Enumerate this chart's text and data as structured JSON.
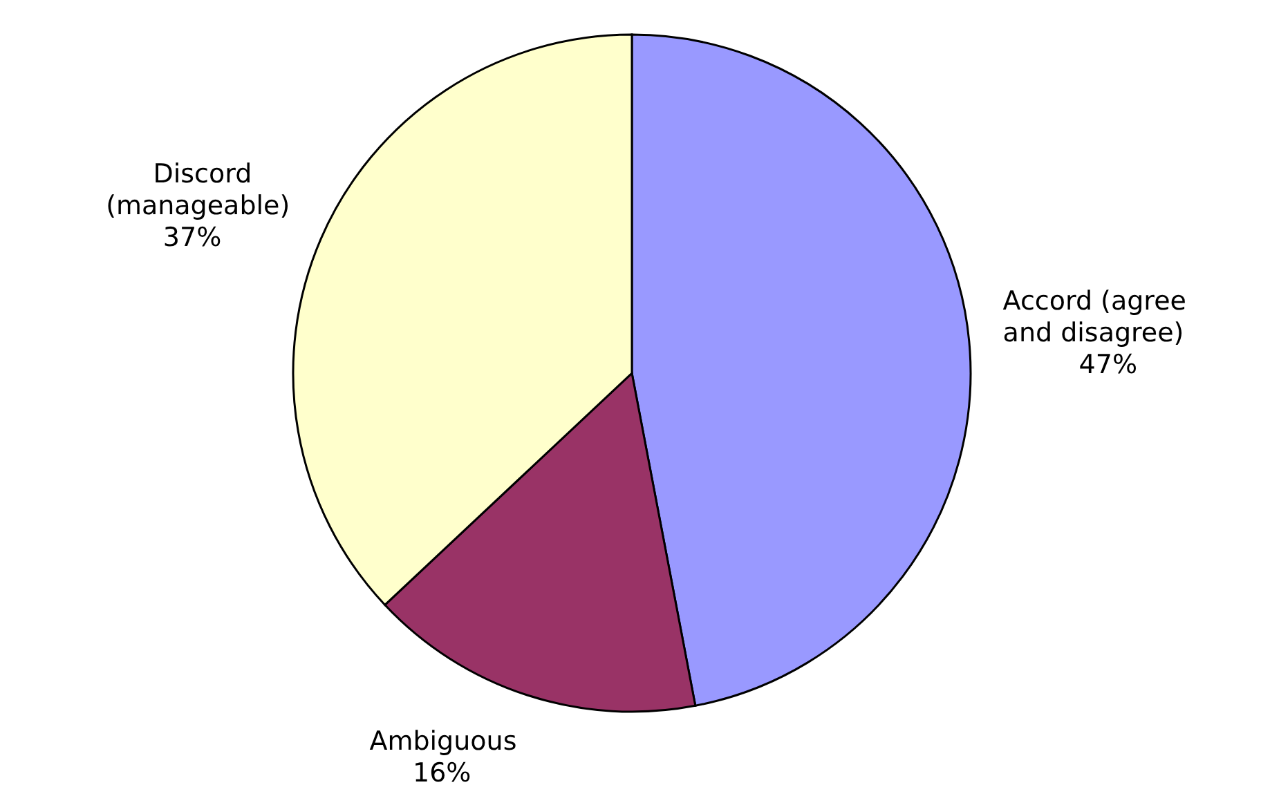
{
  "chart_data": {
    "type": "pie",
    "categories": [
      "Accord (agree and disagree)",
      "Ambiguous",
      "Discord (manageable)"
    ],
    "values": [
      47,
      16,
      37
    ],
    "colors": [
      "#9999ff",
      "#993366",
      "#ffffcc"
    ],
    "value_labels": [
      "47%",
      "16%",
      "37%"
    ]
  }
}
